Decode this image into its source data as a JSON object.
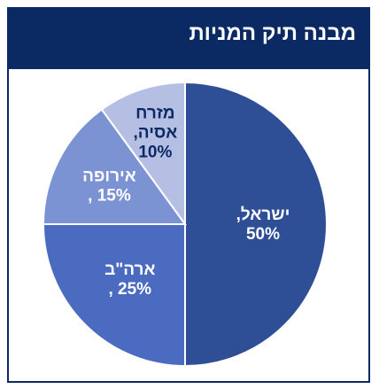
{
  "title": "מבנה תיק המניות",
  "colors": {
    "header_bg": "#0b2a63",
    "title_text": "#ffffff",
    "slice_israel": "#2e4f96",
    "slice_usa": "#4a6bbf",
    "slice_europe": "#7b92d3",
    "slice_asia": "#b5bfe3",
    "label_light": "#ffffff",
    "label_dark": "#0b2a63"
  },
  "chart_data": {
    "type": "pie",
    "title": "מבנה תיק המניות",
    "slices": [
      {
        "line1": "ישראל,",
        "line2": "50%",
        "value": 50,
        "color": "#2e4f96",
        "label_color": "#ffffff"
      },
      {
        "line1": "ארה\"ב",
        "line2": "25% ,",
        "value": 25,
        "color": "#4a6bbf",
        "label_color": "#ffffff"
      },
      {
        "line1": "אירופה",
        "line2": "15% ,",
        "value": 15,
        "color": "#7b92d3",
        "label_color": "#ffffff"
      },
      {
        "line1": "מזרח",
        "line2": "אסיה,",
        "line3": "10%",
        "value": 10,
        "color": "#b5bfe3",
        "label_color": "#0b2a63"
      }
    ]
  }
}
